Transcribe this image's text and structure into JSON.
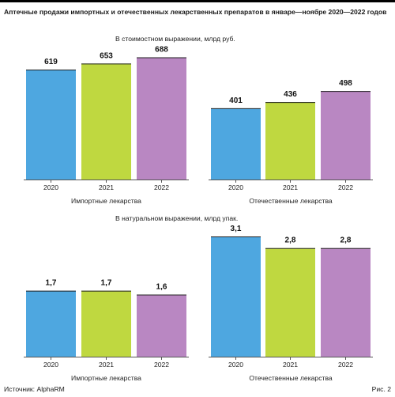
{
  "title": "Аптечные продажи импортных и отечественных лекарственных препаратов в январе—ноябре 2020—2022 годов",
  "source": "Источник: AlphaRM",
  "figure_label": "Рис. 2",
  "colors": {
    "2020": "#4ea7e0",
    "2021": "#bfd840",
    "2022": "#b987c2"
  },
  "chart_data": [
    {
      "type": "bar",
      "title": "В стоимостном выражении, млрд руб.",
      "groups": [
        {
          "name": "Импортные лекарства",
          "categories": [
            "2020",
            "2021",
            "2022"
          ],
          "values": [
            619,
            653,
            688
          ],
          "value_labels": [
            "619",
            "653",
            "688"
          ]
        },
        {
          "name": "Отечественные лекарства",
          "categories": [
            "2020",
            "2021",
            "2022"
          ],
          "values": [
            401,
            436,
            498
          ],
          "value_labels": [
            "401",
            "436",
            "498"
          ]
        }
      ]
    },
    {
      "type": "bar",
      "title": "В натуральном выражении, млрд упак.",
      "groups": [
        {
          "name": "Импортные лекарства",
          "categories": [
            "2020",
            "2021",
            "2022"
          ],
          "values": [
            1.7,
            1.7,
            1.6
          ],
          "value_labels": [
            "1,7",
            "1,7",
            "1,6"
          ]
        },
        {
          "name": "Отечественные лекарства",
          "categories": [
            "2020",
            "2021",
            "2022"
          ],
          "values": [
            3.1,
            2.8,
            2.8
          ],
          "value_labels": [
            "3,1",
            "2,8",
            "2,8"
          ]
        }
      ]
    }
  ]
}
